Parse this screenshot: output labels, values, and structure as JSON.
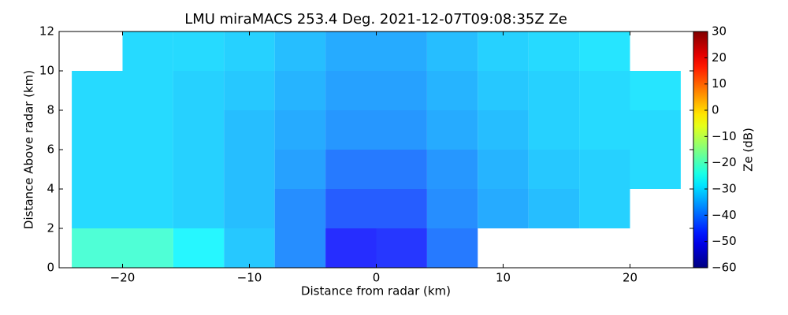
{
  "chart_data": {
    "type": "heatmap",
    "title": "LMU miraMACS 253.4 Deg. 2021-12-07T09:08:35Z  Ze",
    "xlabel": "Distance from radar (km)",
    "ylabel": "Distance Above radar  (km)",
    "colorbar_label": "Ze (dB)",
    "colormap": "jet",
    "x": [
      -22,
      -18,
      -14,
      -10,
      -6,
      -2,
      2,
      6,
      10,
      14,
      18,
      22
    ],
    "y": [
      1,
      3,
      5,
      7,
      9,
      11
    ],
    "values": [
      [
        -22,
        -22,
        -27,
        -32,
        -38,
        -48,
        -47,
        -40,
        null,
        null,
        null,
        null
      ],
      [
        -30,
        -30,
        -31,
        -33,
        -38,
        -43,
        -43,
        -38,
        -35,
        -33,
        -31,
        null
      ],
      [
        -30,
        -30,
        -31,
        -33,
        -36,
        -40,
        -40,
        -37,
        -34,
        -32,
        -31,
        -30
      ],
      [
        -30,
        -30,
        -31,
        -33,
        -35,
        -37,
        -37,
        -35,
        -33,
        -31,
        -30,
        -30
      ],
      [
        -30,
        -30,
        -31,
        -32,
        -34,
        -36,
        -36,
        -34,
        -32,
        -31,
        -30,
        -29
      ],
      [
        null,
        -30,
        -30,
        -31,
        -33,
        -35,
        -35,
        -33,
        -31,
        -30,
        -29,
        null
      ]
    ],
    "xlim": [
      -25,
      25
    ],
    "ylim": [
      0,
      12
    ],
    "xticks": [
      {
        "value": -20,
        "label": "−20"
      },
      {
        "value": -10,
        "label": "−10"
      },
      0,
      10,
      20
    ],
    "yticks": [
      0,
      2,
      4,
      6,
      8,
      10,
      12
    ],
    "clim": [
      -60,
      30
    ],
    "cticks": [
      {
        "value": -60,
        "label": "−60"
      },
      {
        "value": -50,
        "label": "−50"
      },
      {
        "value": -40,
        "label": "−40"
      },
      {
        "value": -30,
        "label": "−30"
      },
      {
        "value": -20,
        "label": "−20"
      },
      {
        "value": -10,
        "label": "−10"
      },
      0,
      10,
      20,
      30
    ]
  }
}
